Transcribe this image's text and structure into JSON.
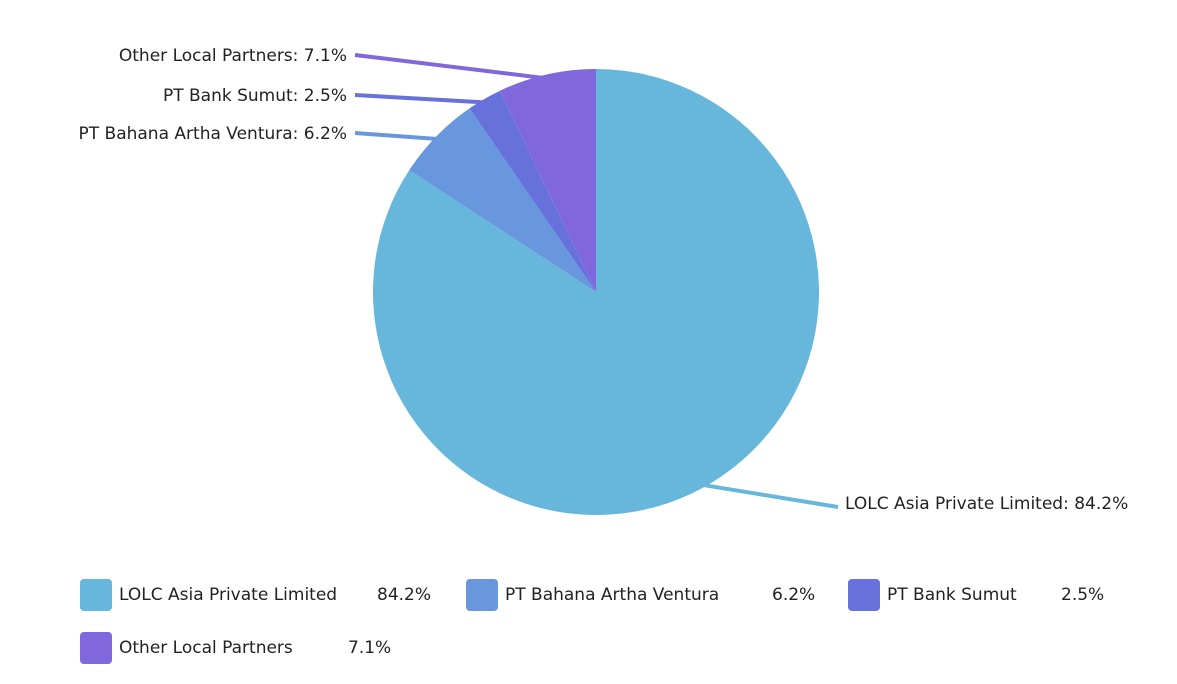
{
  "chart_data": {
    "type": "pie",
    "slices": [
      {
        "label": "LOLC Asia Private Limited",
        "value": 84.2,
        "value_text": "84.2%",
        "color": "#67B6DC"
      },
      {
        "label": "PT Bahana Artha Ventura",
        "value": 6.2,
        "value_text": "6.2%",
        "color": "#6897DE"
      },
      {
        "label": "PT Bank Sumut",
        "value": 2.5,
        "value_text": "2.5%",
        "color": "#6771DC"
      },
      {
        "label": "Other Local Partners",
        "value": 7.1,
        "value_text": "7.1%",
        "color": "#8067DC"
      }
    ],
    "callouts": [
      "LOLC Asia Private Limited: 84.2%",
      "PT Bahana Artha Ventura: 6.2%",
      "PT Bank Sumut: 2.5%",
      "Other Local Partners: 7.1%"
    ],
    "legend_position": "bottom"
  }
}
